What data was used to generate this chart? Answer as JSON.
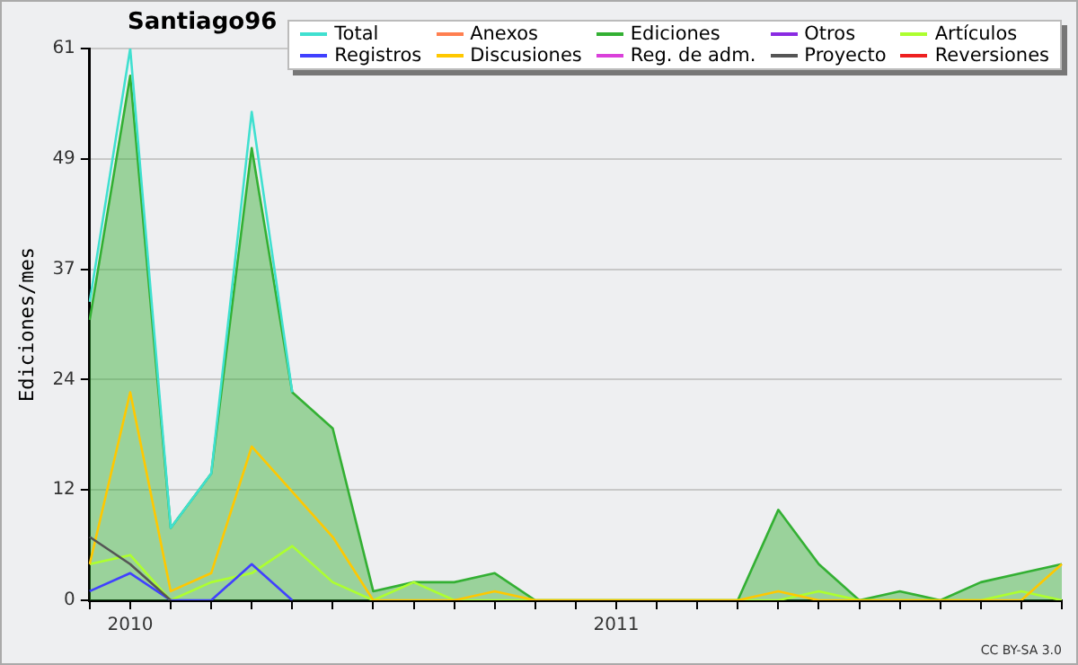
{
  "chart_data": {
    "type": "line",
    "title": "Santiago96",
    "ylabel": "Ediciones/mes",
    "categories": [
      null,
      "2010",
      null,
      null,
      null,
      null,
      null,
      null,
      null,
      null,
      null,
      null,
      null,
      "2011",
      null,
      null,
      null,
      null,
      null,
      null,
      null,
      null,
      null,
      null,
      null
    ],
    "series": [
      {
        "name": "Total",
        "color": "#40e0d0",
        "values": [
          33,
          61,
          8,
          14,
          54,
          23,
          null,
          null,
          null,
          null,
          null,
          null,
          null,
          null,
          null,
          null,
          null,
          null,
          null,
          null,
          null,
          null,
          null,
          null,
          null
        ]
      },
      {
        "name": "Anexos",
        "color": "#ff7f50",
        "values": [
          null,
          null,
          null,
          null,
          null,
          null,
          null,
          null,
          null,
          null,
          null,
          null,
          null,
          null,
          null,
          null,
          null,
          null,
          null,
          null,
          null,
          null,
          null,
          null,
          null
        ]
      },
      {
        "name": "Ediciones",
        "type": "area",
        "color": "#33b033",
        "values": [
          31,
          58,
          8,
          14,
          50,
          23,
          19,
          1,
          2,
          2,
          3,
          0,
          0,
          0,
          0,
          0,
          0,
          10,
          4,
          0,
          1,
          0,
          2,
          3,
          4
        ]
      },
      {
        "name": "Otros",
        "color": "#8a2be2",
        "values": [
          null,
          null,
          null,
          null,
          null,
          null,
          null,
          null,
          null,
          null,
          null,
          null,
          null,
          null,
          null,
          null,
          null,
          null,
          null,
          null,
          null,
          null,
          null,
          null,
          null
        ]
      },
      {
        "name": "Artículos",
        "color": "#adff2f",
        "values": [
          4,
          5,
          0,
          2,
          3,
          6,
          2,
          0,
          2,
          0,
          0,
          0,
          0,
          0,
          0,
          0,
          0,
          0,
          1,
          0,
          0,
          0,
          0,
          1,
          0
        ]
      },
      {
        "name": "Registros",
        "color": "#4040ff",
        "values": [
          1,
          3,
          0,
          0,
          4,
          0,
          null,
          null,
          null,
          null,
          null,
          null,
          null,
          null,
          null,
          null,
          null,
          null,
          null,
          null,
          null,
          null,
          null,
          null,
          null
        ]
      },
      {
        "name": "Discusiones",
        "color": "#ffc800",
        "values": [
          4,
          23,
          1,
          3,
          17,
          12,
          7,
          0,
          0,
          0,
          1,
          0,
          0,
          0,
          0,
          0,
          0,
          1,
          0,
          0,
          0,
          0,
          0,
          0,
          4
        ]
      },
      {
        "name": "Reg. de adm.",
        "color": "#da40da",
        "values": [
          null,
          null,
          null,
          null,
          null,
          null,
          null,
          null,
          null,
          null,
          null,
          null,
          null,
          null,
          null,
          null,
          null,
          null,
          null,
          null,
          null,
          null,
          null,
          null,
          null
        ]
      },
      {
        "name": "Proyecto",
        "color": "#555555",
        "values": [
          7,
          4,
          0,
          null,
          null,
          null,
          null,
          null,
          null,
          null,
          null,
          null,
          null,
          null,
          null,
          null,
          null,
          null,
          null,
          null,
          null,
          null,
          null,
          null,
          null
        ]
      },
      {
        "name": "Reversiones",
        "color": "#ee2020",
        "values": [
          null,
          null,
          null,
          null,
          null,
          null,
          null,
          null,
          null,
          null,
          null,
          null,
          null,
          null,
          null,
          null,
          null,
          null,
          null,
          null,
          null,
          null,
          null,
          null,
          null
        ]
      }
    ],
    "ylim": [
      0,
      61
    ],
    "yticks": [
      0,
      {
        "value": 12.2,
        "label": "12"
      },
      {
        "value": 24.4,
        "label": "24"
      },
      {
        "value": 36.6,
        "label": "37"
      },
      {
        "value": 48.8,
        "label": "49"
      },
      61
    ],
    "grid": "y",
    "legend": "top right",
    "marker": "none",
    "line_style": "solid",
    "annotations": [
      "CC BY-SA 3.0"
    ]
  }
}
